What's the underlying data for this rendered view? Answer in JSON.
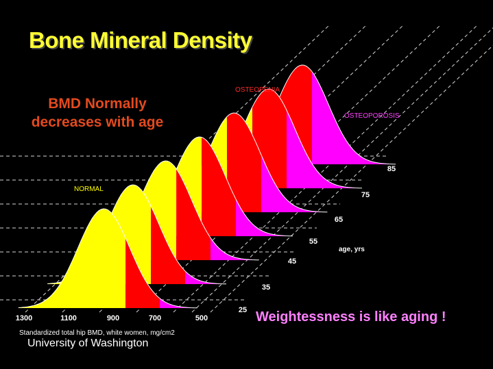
{
  "slide": {
    "title": "Bone Mineral Density",
    "subtitle_line1": "BMD Normally",
    "subtitle_line2": "decreases with age",
    "footer": "University of Washington",
    "callout": "Weightessness is like aging !"
  },
  "chart_data": {
    "type": "area",
    "title": "Bone Mineral Density",
    "xlabel": "Standardized total hip BMD,  white women, mg/cm2",
    "zlabel": "age, yrs",
    "x_ticks": [
      "1300",
      "1100",
      "900",
      "700",
      "500"
    ],
    "age_ticks": [
      "25",
      "35",
      "45",
      "55",
      "65",
      "75",
      "85"
    ],
    "region_labels": {
      "normal": "NORMAL",
      "osteopenia": "OSTEOPENIA",
      "osteoporosis": "OSTEOPOROSIS"
    },
    "colors": {
      "normal": "#ffff00",
      "osteopenia": "#ff0000",
      "osteoporosis": "#ff00ff"
    },
    "series": [
      {
        "age": 25,
        "mean_bmd": 950
      },
      {
        "age": 35,
        "mean_bmd": 930
      },
      {
        "age": 45,
        "mean_bmd": 890
      },
      {
        "age": 55,
        "mean_bmd": 845
      },
      {
        "age": 65,
        "mean_bmd": 795
      },
      {
        "age": 75,
        "mean_bmd": 745
      },
      {
        "age": 85,
        "mean_bmd": 700
      }
    ]
  }
}
